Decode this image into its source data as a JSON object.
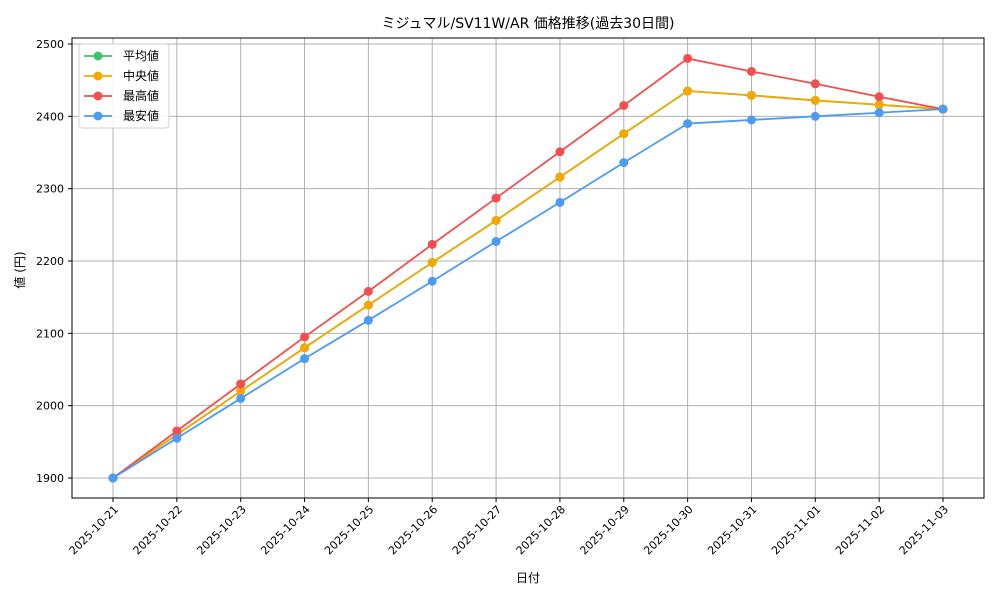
{
  "chart_data": {
    "type": "line",
    "title": "ミジュマル/SV11W/AR 価格推移(過去30日間)",
    "xlabel": "日付",
    "ylabel": "値 (円)",
    "ylim": [
      1872,
      2510
    ],
    "yticks": [
      1900,
      2000,
      2100,
      2200,
      2300,
      2400,
      2500
    ],
    "grid": true,
    "legend_position": "upper left",
    "categories": [
      "2025-10-21",
      "2025-10-22",
      "2025-10-23",
      "2025-10-24",
      "2025-10-25",
      "2025-10-26",
      "2025-10-27",
      "2025-10-28",
      "2025-10-29",
      "2025-10-30",
      "2025-10-31",
      "2025-11-01",
      "2025-11-02",
      "2025-11-03"
    ],
    "series": [
      {
        "name": "平均値",
        "color": "#3cc46a",
        "values": [
          1900,
          1960,
          2020,
          2080,
          2139,
          2198,
          2256,
          2316,
          2376,
          2435,
          2429,
          2422,
          2416,
          2410
        ]
      },
      {
        "name": "中央値",
        "color": "#f5a800",
        "values": [
          1900,
          1960,
          2020,
          2080,
          2139,
          2198,
          2256,
          2316,
          2376,
          2435,
          2429,
          2422,
          2416,
          2410
        ]
      },
      {
        "name": "最高値",
        "color": "#f44e4e",
        "values": [
          1900,
          1965,
          2030,
          2095,
          2158,
          2223,
          2287,
          2351,
          2415,
          2480,
          2462,
          2445,
          2427,
          2410
        ]
      },
      {
        "name": "最安値",
        "color": "#4c9bf5",
        "values": [
          1900,
          1955,
          2010,
          2065,
          2118,
          2172,
          2227,
          2281,
          2336,
          2390,
          2395,
          2400,
          2405,
          2410
        ]
      }
    ]
  }
}
